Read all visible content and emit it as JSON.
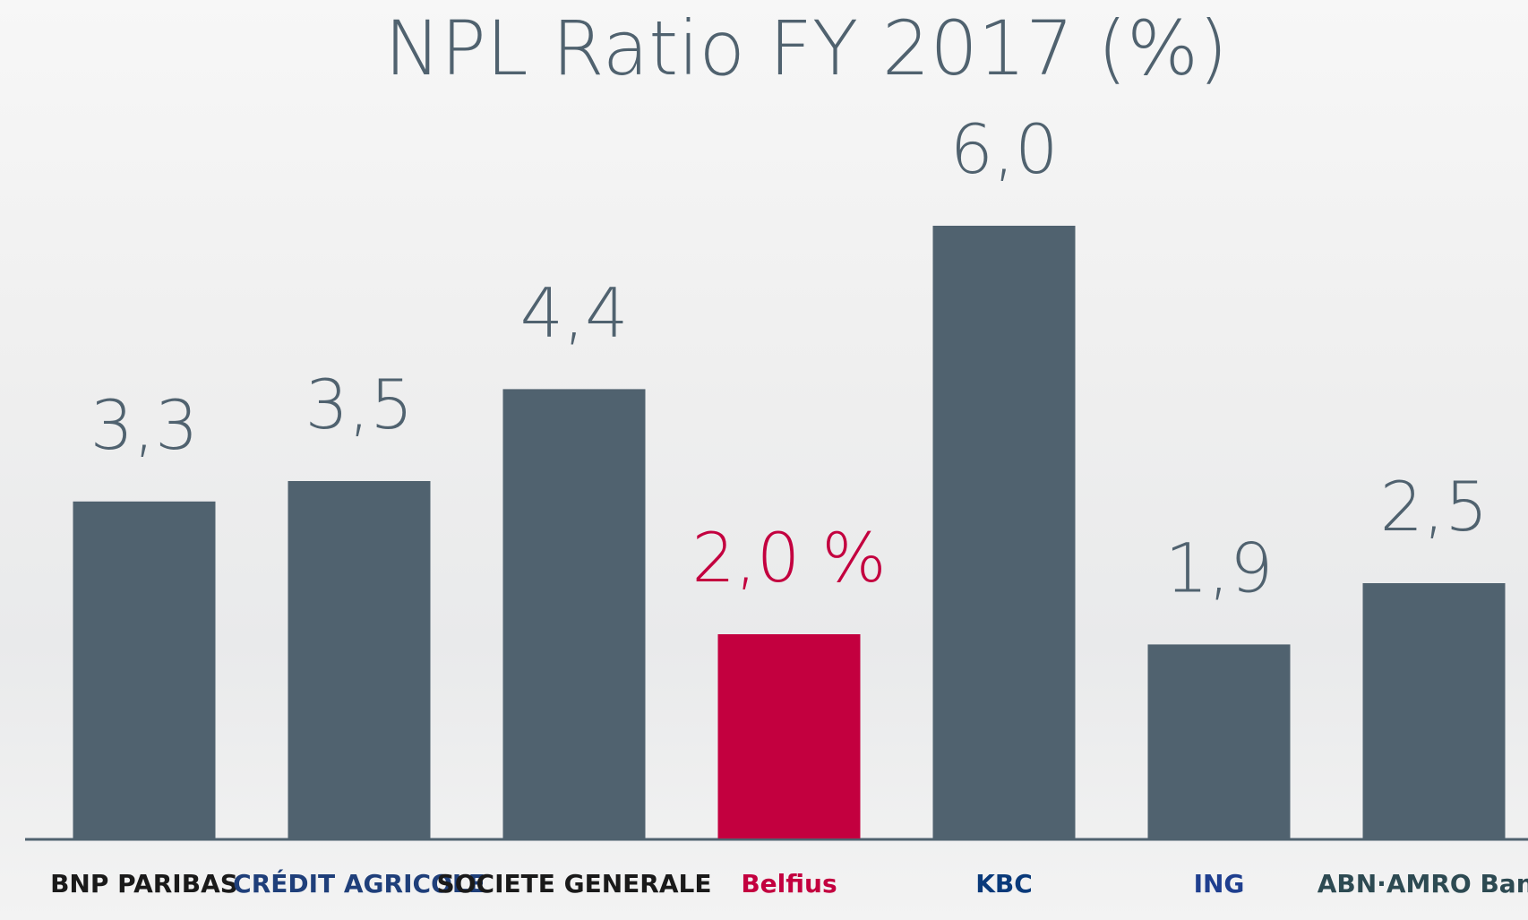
{
  "chart_data": {
    "type": "bar",
    "title": "NPL Ratio FY 2017 (%)",
    "categories": [
      "BNP PARIBAS",
      "CRÉDIT AGRICOLE",
      "SOCIETE GENERALE",
      "Belfius",
      "KBC",
      "ING",
      "ABN·AMRO Bank"
    ],
    "values": [
      3.3,
      3.5,
      4.4,
      2.0,
      6.0,
      1.9,
      2.5
    ],
    "value_labels": [
      "3,3",
      "3,5",
      "4,4",
      "2,0 %",
      "6,0",
      "1,9",
      "2,5"
    ],
    "colors": [
      "#50626f",
      "#50626f",
      "#50626f",
      "#c3003f",
      "#50626f",
      "#50626f",
      "#50626f"
    ]
  }
}
